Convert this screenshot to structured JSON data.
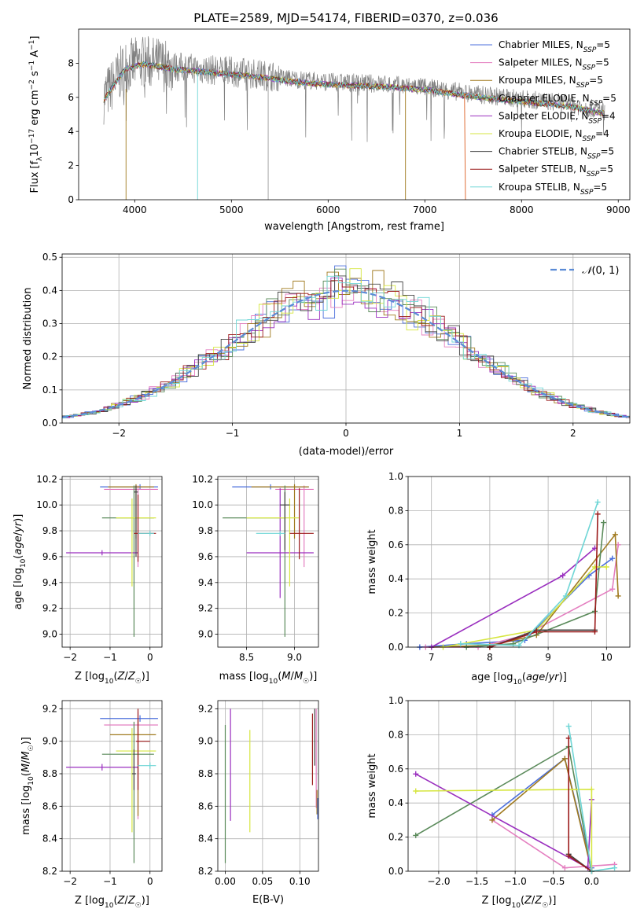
{
  "figure_title": "PLATE=2589, MJD=54174, FIBERID=0370, z=0.036",
  "model_colors": [
    "#4b6fdc",
    "#e47fc0",
    "#a07a1f",
    "#5a8a5a",
    "#9a2fbf",
    "#d6e640",
    "#444444",
    "#9b1b1b",
    "#6fd6d6"
  ],
  "chart_data": [
    {
      "id": "spectrum",
      "type": "line",
      "title": "PLATE=2589, MJD=54174, FIBERID=0370, z=0.036",
      "xlabel": "wavelength [Angstrom, rest frame]",
      "ylabel": "Flux [fλ 10^-17 erg cm^-2 s^-1 A^-1]",
      "xlim": [
        3420,
        9120
      ],
      "ylim": [
        0,
        10
      ],
      "xticks": [
        4000,
        5000,
        6000,
        7000,
        8000,
        9000
      ],
      "yticks": [
        0,
        2,
        4,
        6,
        8
      ],
      "grid": false,
      "legend_position": "top-right",
      "data_color": "#808080",
      "data_x_range": [
        3680,
        8860
      ],
      "continuum": [
        [
          3680,
          6.0
        ],
        [
          3900,
          7.8
        ],
        [
          4100,
          8.1
        ],
        [
          4400,
          7.8
        ],
        [
          4800,
          7.6
        ],
        [
          5200,
          7.4
        ],
        [
          5600,
          7.1
        ],
        [
          6000,
          6.9
        ],
        [
          6500,
          6.8
        ],
        [
          7000,
          6.6
        ],
        [
          7500,
          6.2
        ],
        [
          8000,
          5.9
        ],
        [
          8400,
          5.7
        ],
        [
          8860,
          5.2
        ]
      ],
      "series": [
        {
          "name": "Chabrier MILES",
          "nssp": "N_SSP=5",
          "color": "#4b6fdc"
        },
        {
          "name": "Salpeter MILES",
          "nssp": "N_SSP=5",
          "color": "#e47fc0"
        },
        {
          "name": "Kroupa MILES",
          "nssp": "N_SSP=5",
          "color": "#a07a1f"
        },
        {
          "name": "Chabrier ELODIE",
          "nssp": "N_SSP=5",
          "color": "#5a8a5a"
        },
        {
          "name": "Salpeter ELODIE",
          "nssp": "N_SSP=4",
          "color": "#9a2fbf"
        },
        {
          "name": "Kroupa ELODIE",
          "nssp": "N_SSP=4",
          "color": "#d6e640"
        },
        {
          "name": "Chabrier STELIB",
          "nssp": "N_SSP=5",
          "color": "#444444"
        },
        {
          "name": "Salpeter STELIB",
          "nssp": "N_SSP=5",
          "color": "#9b1b1b"
        },
        {
          "name": "Kroupa STELIB",
          "nssp": "N_SSP=5",
          "color": "#6fd6d6"
        }
      ]
    },
    {
      "id": "residuals",
      "type": "line",
      "xlabel": "(data-model)/error",
      "ylabel": "Normed distribution",
      "xlim": [
        -2.5,
        2.5
      ],
      "ylim": [
        0,
        0.51
      ],
      "xticks": [
        -2,
        -1,
        0,
        1,
        2
      ],
      "yticks": [
        0.0,
        0.1,
        0.2,
        0.3,
        0.4,
        0.5
      ],
      "grid": true,
      "legend_position": "top-right",
      "legend_label": "N(0,1)",
      "gaussian": {
        "mean": 0,
        "sigma": 1,
        "color": "#5b8bd6"
      },
      "histogram_bin_width": 0.1
    },
    {
      "id": "age-vs-z",
      "type": "scatter",
      "xlabel": "Z [log10(Z/Z☉)]",
      "ylabel": "age  [log10(age/yr)]",
      "xlim": [
        -2.2,
        0.3
      ],
      "ylim": [
        8.9,
        10.22
      ],
      "xticks": [
        -2,
        -1,
        0
      ],
      "yticks": [
        9.0,
        9.2,
        9.4,
        9.6,
        9.8,
        10.0,
        10.2
      ],
      "grid": true,
      "points": [
        {
          "x": -0.25,
          "y": 10.14,
          "xerr": [
            1.0,
            0.45
          ],
          "yerr": [
            0.02,
            0.02
          ],
          "color": "#4b6fdc"
        },
        {
          "x": -0.3,
          "y": 10.12,
          "xerr": [
            0.85,
            0.5
          ],
          "yerr": [
            0.6,
            0.03
          ],
          "color": "#e47fc0"
        },
        {
          "x": -0.35,
          "y": 10.14,
          "xerr": [
            0.7,
            0.45
          ],
          "yerr": [
            0.4,
            0.02
          ],
          "color": "#a07a1f"
        },
        {
          "x": -0.4,
          "y": 9.9,
          "xerr": [
            0.8,
            0.5
          ],
          "yerr": [
            0.92,
            0.25
          ],
          "color": "#5a8a5a"
        },
        {
          "x": -1.2,
          "y": 9.63,
          "xerr": [
            0.9,
            0.9
          ],
          "yerr": [
            0.02,
            0.02
          ],
          "color": "#9a2fbf"
        },
        {
          "x": -0.45,
          "y": 9.9,
          "xerr": [
            0.4,
            0.6
          ],
          "yerr": [
            0.53,
            0.15
          ],
          "color": "#d6e640"
        },
        {
          "x": -0.35,
          "y": 10.1,
          "xerr": [
            0.05,
            0.05
          ],
          "yerr": [
            0.5,
            0.05
          ],
          "color": "#444444"
        },
        {
          "x": -0.3,
          "y": 9.78,
          "xerr": [
            0.1,
            0.45
          ],
          "yerr": [
            0.22,
            0.3
          ],
          "color": "#9b1b1b"
        },
        {
          "x": 0.0,
          "y": 9.78,
          "xerr": [
            0.3,
            0.1
          ],
          "yerr": [
            0.02,
            0.02
          ],
          "color": "#6fd6d6"
        }
      ]
    },
    {
      "id": "age-vs-mass",
      "type": "scatter",
      "xlabel": "mass [log10(M/M☉)]",
      "ylabel": "",
      "xlim": [
        8.2,
        9.25
      ],
      "ylim": [
        8.9,
        10.22
      ],
      "xticks": [
        8.5,
        9.0
      ],
      "yticks": [
        9.0,
        9.2,
        9.4,
        9.6,
        9.8,
        10.0,
        10.2
      ],
      "grid": true,
      "points": [
        {
          "x": 8.75,
          "y": 10.14,
          "xerr": [
            0.4,
            0.4
          ],
          "yerr": [
            0.02,
            0.02
          ],
          "color": "#4b6fdc"
        },
        {
          "x": 9.1,
          "y": 10.12,
          "xerr": [
            0.3,
            0.1
          ],
          "yerr": [
            0.6,
            0.03
          ],
          "color": "#e47fc0"
        },
        {
          "x": 9.0,
          "y": 10.14,
          "xerr": [
            0.45,
            0.15
          ],
          "yerr": [
            0.4,
            0.02
          ],
          "color": "#a07a1f"
        },
        {
          "x": 8.9,
          "y": 9.9,
          "xerr": [
            0.65,
            0.0
          ],
          "yerr": [
            0.92,
            0.25
          ],
          "color": "#5a8a5a"
        },
        {
          "x": 8.85,
          "y": 9.63,
          "xerr": [
            0.35,
            0.35
          ],
          "yerr": [
            0.35,
            0.5
          ],
          "color": "#9a2fbf"
        },
        {
          "x": 8.95,
          "y": 9.9,
          "xerr": [
            0.45,
            0.1
          ],
          "yerr": [
            0.53,
            0.15
          ],
          "color": "#d6e640"
        },
        {
          "x": 8.9,
          "y": 10.0,
          "xerr": [
            0.05,
            0.05
          ],
          "yerr": [
            0.35,
            0.1
          ],
          "color": "#444444"
        },
        {
          "x": 9.05,
          "y": 9.78,
          "xerr": [
            0.1,
            0.15
          ],
          "yerr": [
            0.2,
            0.35
          ],
          "color": "#9b1b1b"
        },
        {
          "x": 8.85,
          "y": 9.78,
          "xerr": [
            0.25,
            0.05
          ],
          "yerr": [
            0.02,
            0.02
          ],
          "color": "#6fd6d6"
        }
      ]
    },
    {
      "id": "weight-vs-age",
      "type": "line",
      "xlabel": "age  [log10(age/yr)]",
      "ylabel": "mass weight",
      "xlim": [
        6.6,
        10.4
      ],
      "ylim": [
        0,
        1.0
      ],
      "xticks": [
        7,
        8,
        9,
        10
      ],
      "yticks": [
        0.0,
        0.2,
        0.4,
        0.6,
        0.8,
        1.0
      ],
      "grid": true,
      "series": [
        {
          "color": "#4b6fdc",
          "points": [
            [
              6.8,
              0.0
            ],
            [
              7.6,
              0.02
            ],
            [
              8.6,
              0.04
            ],
            [
              9.7,
              0.42
            ],
            [
              10.1,
              0.52
            ]
          ]
        },
        {
          "color": "#e47fc0",
          "points": [
            [
              6.9,
              0.0
            ],
            [
              7.8,
              0.0
            ],
            [
              8.6,
              0.07
            ],
            [
              10.1,
              0.34
            ],
            [
              10.2,
              0.6
            ]
          ]
        },
        {
          "color": "#a07a1f",
          "points": [
            [
              7.0,
              0.0
            ],
            [
              8.0,
              0.01
            ],
            [
              8.8,
              0.07
            ],
            [
              10.15,
              0.66
            ],
            [
              10.2,
              0.3
            ]
          ]
        },
        {
          "color": "#5a8a5a",
          "points": [
            [
              7.6,
              0.0
            ],
            [
              8.4,
              0.02
            ],
            [
              9.8,
              0.21
            ],
            [
              9.95,
              0.73
            ]
          ]
        },
        {
          "color": "#9a2fbf",
          "points": [
            [
              7.0,
              0.0
            ],
            [
              9.25,
              0.42
            ],
            [
              9.8,
              0.58
            ]
          ]
        },
        {
          "color": "#d6e640",
          "points": [
            [
              7.2,
              0.0
            ],
            [
              8.8,
              0.1
            ],
            [
              9.8,
              0.47
            ],
            [
              10.0,
              0.47
            ]
          ]
        },
        {
          "color": "#444444",
          "points": [
            [
              8.0,
              0.0
            ],
            [
              8.8,
              0.1
            ],
            [
              9.8,
              0.1
            ]
          ]
        },
        {
          "color": "#9b1b1b",
          "points": [
            [
              8.0,
              0.0
            ],
            [
              8.8,
              0.09
            ],
            [
              9.8,
              0.09
            ],
            [
              9.85,
              0.78
            ]
          ]
        },
        {
          "color": "#6fd6d6",
          "points": [
            [
              7.5,
              0.02
            ],
            [
              8.5,
              0.01
            ],
            [
              9.3,
              0.3
            ],
            [
              9.85,
              0.85
            ]
          ]
        }
      ]
    },
    {
      "id": "mass-vs-z",
      "type": "scatter",
      "xlabel": "Z [log10(Z/Z☉)]",
      "ylabel": "mass [log10(M/M☉)]",
      "xlim": [
        -2.2,
        0.3
      ],
      "ylim": [
        8.2,
        9.25
      ],
      "xticks": [
        -2,
        -1,
        0
      ],
      "yticks": [
        8.2,
        8.4,
        8.6,
        8.8,
        9.0,
        9.2
      ],
      "grid": true,
      "points": [
        {
          "x": -0.25,
          "y": 9.14,
          "xerr": [
            1.0,
            0.45
          ],
          "yerr": [
            0.02,
            0.02
          ],
          "color": "#4b6fdc"
        },
        {
          "x": -0.3,
          "y": 9.1,
          "xerr": [
            0.85,
            0.5
          ],
          "yerr": [
            0.58,
            0.08
          ],
          "color": "#e47fc0"
        },
        {
          "x": -0.3,
          "y": 9.04,
          "xerr": [
            0.7,
            0.45
          ],
          "yerr": [
            0.5,
            0.1
          ],
          "color": "#a07a1f"
        },
        {
          "x": -0.4,
          "y": 8.92,
          "xerr": [
            0.8,
            0.5
          ],
          "yerr": [
            0.67,
            0.2
          ],
          "color": "#5a8a5a"
        },
        {
          "x": -1.2,
          "y": 8.84,
          "xerr": [
            0.9,
            0.9
          ],
          "yerr": [
            0.02,
            0.02
          ],
          "color": "#9a2fbf"
        },
        {
          "x": -0.45,
          "y": 8.94,
          "xerr": [
            0.4,
            0.6
          ],
          "yerr": [
            0.5,
            0.14
          ],
          "color": "#d6e640"
        },
        {
          "x": -0.4,
          "y": 8.8,
          "xerr": [
            0.05,
            0.05
          ],
          "yerr": [
            0.1,
            0.15
          ],
          "color": "#444444"
        },
        {
          "x": -0.3,
          "y": 9.0,
          "xerr": [
            0.05,
            0.3
          ],
          "yerr": [
            0.3,
            0.2
          ],
          "color": "#9b1b1b"
        },
        {
          "x": 0.0,
          "y": 8.85,
          "xerr": [
            0.3,
            0.15
          ],
          "yerr": [
            0.02,
            0.02
          ],
          "color": "#6fd6d6"
        }
      ]
    },
    {
      "id": "mass-vs-ebv",
      "type": "scatter",
      "xlabel": "E(B-V)",
      "ylabel": "",
      "xlim": [
        -0.01,
        0.125
      ],
      "ylim": [
        8.2,
        9.25
      ],
      "xticks": [
        0.0,
        0.05,
        0.1
      ],
      "xtick_labels": [
        "0.00",
        "0.05",
        "0.10"
      ],
      "yticks": [
        8.2,
        8.4,
        8.6,
        8.8,
        9.0,
        9.2
      ],
      "grid": true,
      "points": [
        {
          "x": 0.0,
          "y": 8.5,
          "yerr": [
            0.25,
            0.6
          ],
          "color": "#5a8a5a"
        },
        {
          "x": 0.007,
          "y": 8.85,
          "yerr": [
            0.34,
            0.35
          ],
          "color": "#9a2fbf"
        },
        {
          "x": 0.033,
          "y": 8.75,
          "yerr": [
            0.31,
            0.32
          ],
          "color": "#d6e640"
        },
        {
          "x": 0.117,
          "y": 8.95,
          "yerr": [
            0.22,
            0.22
          ],
          "color": "#9b1b1b"
        },
        {
          "x": 0.12,
          "y": 9.0,
          "yerr": [
            0.15,
            0.2
          ],
          "color": "#444444"
        },
        {
          "x": 0.122,
          "y": 8.8,
          "yerr": [
            0.21,
            0.4
          ],
          "color": "#e47fc0"
        },
        {
          "x": 0.123,
          "y": 8.65,
          "yerr": [
            0.1,
            0.05
          ],
          "color": "#a07a1f"
        },
        {
          "x": 0.124,
          "y": 8.6,
          "yerr": [
            0.08,
            0.05
          ],
          "color": "#4b6fdc"
        }
      ]
    },
    {
      "id": "weight-vs-z",
      "type": "line",
      "xlabel": "Z [log10(Z/Z☉)]",
      "ylabel": "mass weight",
      "xlim": [
        -2.4,
        0.5
      ],
      "ylim": [
        0,
        1.0
      ],
      "xticks": [
        -2.0,
        -1.5,
        -1.0,
        -0.5,
        0.0
      ],
      "xtick_labels": [
        "−2.0",
        "−1.5",
        "−1.0",
        "−0.5",
        "0.0"
      ],
      "yticks": [
        0.0,
        0.2,
        0.4,
        0.6,
        0.8,
        1.0
      ],
      "grid": true,
      "series": [
        {
          "color": "#e47fc0",
          "points": [
            [
              -1.3,
              0.3
            ],
            [
              -0.35,
              0.02
            ],
            [
              0.3,
              0.04
            ]
          ]
        },
        {
          "color": "#4b6fdc",
          "points": [
            [
              -1.3,
              0.33
            ],
            [
              -0.35,
              0.66
            ],
            [
              0.0,
              0.02
            ]
          ]
        },
        {
          "color": "#a07a1f",
          "points": [
            [
              -1.3,
              0.3
            ],
            [
              -0.35,
              0.66
            ],
            [
              0.0,
              0.0
            ]
          ]
        },
        {
          "color": "#5a8a5a",
          "points": [
            [
              -2.3,
              0.21
            ],
            [
              -0.3,
              0.73
            ],
            [
              0.0,
              0.0
            ]
          ]
        },
        {
          "color": "#9a2fbf",
          "points": [
            [
              -2.3,
              0.57
            ],
            [
              -0.05,
              0.02
            ],
            [
              0.0,
              0.42
            ]
          ]
        },
        {
          "color": "#d6e640",
          "points": [
            [
              -2.3,
              0.47
            ],
            [
              0.0,
              0.48
            ],
            [
              0.0,
              0.0
            ]
          ]
        },
        {
          "color": "#444444",
          "points": [
            [
              -0.3,
              0.1
            ],
            [
              0.0,
              0.0
            ]
          ]
        },
        {
          "color": "#9b1b1b",
          "points": [
            [
              -0.3,
              0.78
            ],
            [
              -0.3,
              0.09
            ],
            [
              0.0,
              0.0
            ]
          ]
        },
        {
          "color": "#6fd6d6",
          "points": [
            [
              -0.3,
              0.85
            ],
            [
              0.0,
              0.0
            ],
            [
              0.3,
              0.02
            ]
          ]
        }
      ]
    }
  ]
}
